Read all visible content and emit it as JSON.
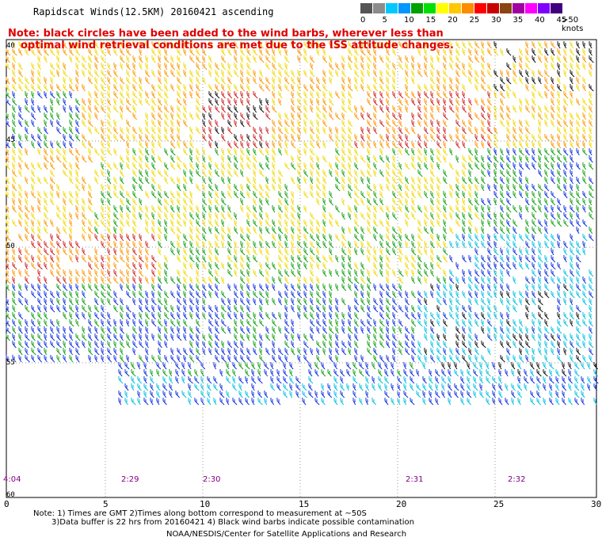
{
  "title": "Rapidscat Winds(12.5KM) 20160421 ascending",
  "note_line1": "Note: black circles have been added to the wind barbs, wherever less than",
  "note_line2": "optimal wind retrieval conditions are met due to the ISS attitude changes.",
  "legend": {
    "labels": [
      "0",
      "5",
      "10",
      "15",
      "20",
      "25",
      "30",
      "35",
      "40",
      "45",
      ">50 knots"
    ],
    "colors": [
      "#555555",
      "#8c8c8c",
      "#00c8ff",
      "#0096ff",
      "#00a000",
      "#00e000",
      "#ffff00",
      "#ffc800",
      "#ff8c00",
      "#ff0000",
      "#c80000",
      "#8b4513",
      "#a000a0",
      "#ff00ff",
      "#8000ff",
      "#400080"
    ]
  },
  "axes": {
    "x_ticks": [
      "0",
      "5",
      "10",
      "15",
      "20",
      "25",
      "30"
    ],
    "y_ticks": [
      "40",
      "45",
      "50",
      "55",
      "60"
    ]
  },
  "times": [
    "4:04",
    "2:29",
    "2:30",
    "2:31",
    "2:32"
  ],
  "footer": {
    "line1": "Note: 1) Times are GMT 2)Times along bottom correspond to measurement at ~50S",
    "line2": "3)Data buffer is 22 hrs from 20160421 4) Black wind barbs indicate possible contamination",
    "line3": "NOAA/NESDIS/Center for Satellite Applications and Research"
  }
}
